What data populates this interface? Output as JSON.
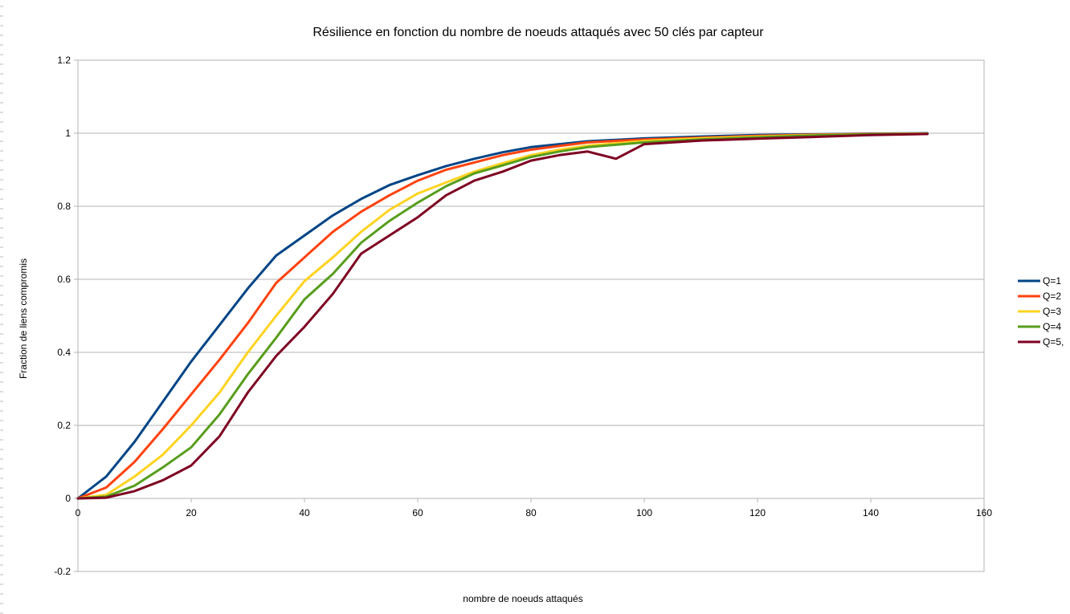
{
  "chart_data": {
    "type": "line",
    "title": "Résilience en fonction du nombre de noeuds attaqués avec 50 clés par capteur",
    "xlabel": "nombre de noeuds attaqués",
    "ylabel": "Fraction de liens compromis",
    "xlim": [
      0,
      160
    ],
    "ylim": [
      -0.2,
      1.2
    ],
    "xticks": [
      "0",
      "20",
      "40",
      "60",
      "80",
      "100",
      "120",
      "140",
      "160"
    ],
    "yticks": [
      "-0.2",
      "0",
      "0.2",
      "0.4",
      "0.6",
      "0.8",
      "1",
      "1.2"
    ],
    "grid": "horizontal",
    "legend_position": "right",
    "series": [
      {
        "name": "Q=1",
        "color": "#004586",
        "points": [
          [
            0,
            0
          ],
          [
            5,
            0.06
          ],
          [
            10,
            0.155
          ],
          [
            15,
            0.265
          ],
          [
            20,
            0.375
          ],
          [
            25,
            0.475
          ],
          [
            30,
            0.575
          ],
          [
            35,
            0.665
          ],
          [
            40,
            0.72
          ],
          [
            45,
            0.775
          ],
          [
            50,
            0.82
          ],
          [
            55,
            0.858
          ],
          [
            60,
            0.885
          ],
          [
            65,
            0.91
          ],
          [
            70,
            0.93
          ],
          [
            75,
            0.948
          ],
          [
            80,
            0.962
          ],
          [
            85,
            0.97
          ],
          [
            90,
            0.978
          ],
          [
            100,
            0.986
          ],
          [
            110,
            0.991
          ],
          [
            120,
            0.995
          ],
          [
            130,
            0.997
          ],
          [
            140,
            0.999
          ],
          [
            150,
            1.0
          ]
        ]
      },
      {
        "name": "Q=2",
        "color": "#ff420e",
        "points": [
          [
            0,
            0
          ],
          [
            5,
            0.03
          ],
          [
            10,
            0.1
          ],
          [
            15,
            0.19
          ],
          [
            20,
            0.285
          ],
          [
            25,
            0.38
          ],
          [
            30,
            0.48
          ],
          [
            35,
            0.59
          ],
          [
            40,
            0.66
          ],
          [
            45,
            0.73
          ],
          [
            50,
            0.785
          ],
          [
            55,
            0.83
          ],
          [
            60,
            0.87
          ],
          [
            65,
            0.9
          ],
          [
            70,
            0.92
          ],
          [
            75,
            0.94
          ],
          [
            80,
            0.955
          ],
          [
            85,
            0.965
          ],
          [
            90,
            0.975
          ],
          [
            100,
            0.983
          ],
          [
            110,
            0.988
          ],
          [
            120,
            0.993
          ],
          [
            130,
            0.996
          ],
          [
            140,
            0.998
          ],
          [
            150,
            0.999
          ]
        ]
      },
      {
        "name": "Q=3",
        "color": "#ffd320",
        "points": [
          [
            0,
            0
          ],
          [
            5,
            0.01
          ],
          [
            10,
            0.06
          ],
          [
            15,
            0.12
          ],
          [
            20,
            0.2
          ],
          [
            25,
            0.29
          ],
          [
            30,
            0.4
          ],
          [
            35,
            0.5
          ],
          [
            40,
            0.595
          ],
          [
            45,
            0.66
          ],
          [
            50,
            0.73
          ],
          [
            55,
            0.79
          ],
          [
            60,
            0.835
          ],
          [
            65,
            0.865
          ],
          [
            70,
            0.895
          ],
          [
            75,
            0.918
          ],
          [
            80,
            0.94
          ],
          [
            85,
            0.955
          ],
          [
            90,
            0.966
          ],
          [
            100,
            0.979
          ],
          [
            110,
            0.986
          ],
          [
            120,
            0.991
          ],
          [
            130,
            0.995
          ],
          [
            140,
            0.997
          ],
          [
            150,
            0.999
          ]
        ]
      },
      {
        "name": "Q=4",
        "color": "#579d1c",
        "points": [
          [
            0,
            0
          ],
          [
            5,
            0.005
          ],
          [
            10,
            0.035
          ],
          [
            15,
            0.085
          ],
          [
            20,
            0.14
          ],
          [
            25,
            0.23
          ],
          [
            30,
            0.34
          ],
          [
            35,
            0.44
          ],
          [
            40,
            0.545
          ],
          [
            45,
            0.615
          ],
          [
            50,
            0.7
          ],
          [
            55,
            0.76
          ],
          [
            60,
            0.81
          ],
          [
            65,
            0.855
          ],
          [
            70,
            0.89
          ],
          [
            75,
            0.912
          ],
          [
            80,
            0.935
          ],
          [
            85,
            0.95
          ],
          [
            90,
            0.962
          ],
          [
            100,
            0.975
          ],
          [
            110,
            0.983
          ],
          [
            120,
            0.989
          ],
          [
            130,
            0.994
          ],
          [
            140,
            0.997
          ],
          [
            150,
            0.998
          ]
        ]
      },
      {
        "name": "Q=5,",
        "color": "#7e0021",
        "points": [
          [
            0,
            0
          ],
          [
            5,
            0.002
          ],
          [
            10,
            0.02
          ],
          [
            15,
            0.05
          ],
          [
            20,
            0.09
          ],
          [
            25,
            0.17
          ],
          [
            30,
            0.29
          ],
          [
            35,
            0.39
          ],
          [
            40,
            0.47
          ],
          [
            45,
            0.56
          ],
          [
            50,
            0.67
          ],
          [
            55,
            0.72
          ],
          [
            60,
            0.77
          ],
          [
            65,
            0.83
          ],
          [
            70,
            0.87
          ],
          [
            75,
            0.895
          ],
          [
            80,
            0.925
          ],
          [
            85,
            0.94
          ],
          [
            90,
            0.95
          ],
          [
            95,
            0.93
          ],
          [
            100,
            0.97
          ],
          [
            110,
            0.98
          ],
          [
            120,
            0.985
          ],
          [
            130,
            0.99
          ],
          [
            140,
            0.995
          ],
          [
            150,
            0.998
          ]
        ]
      }
    ]
  }
}
